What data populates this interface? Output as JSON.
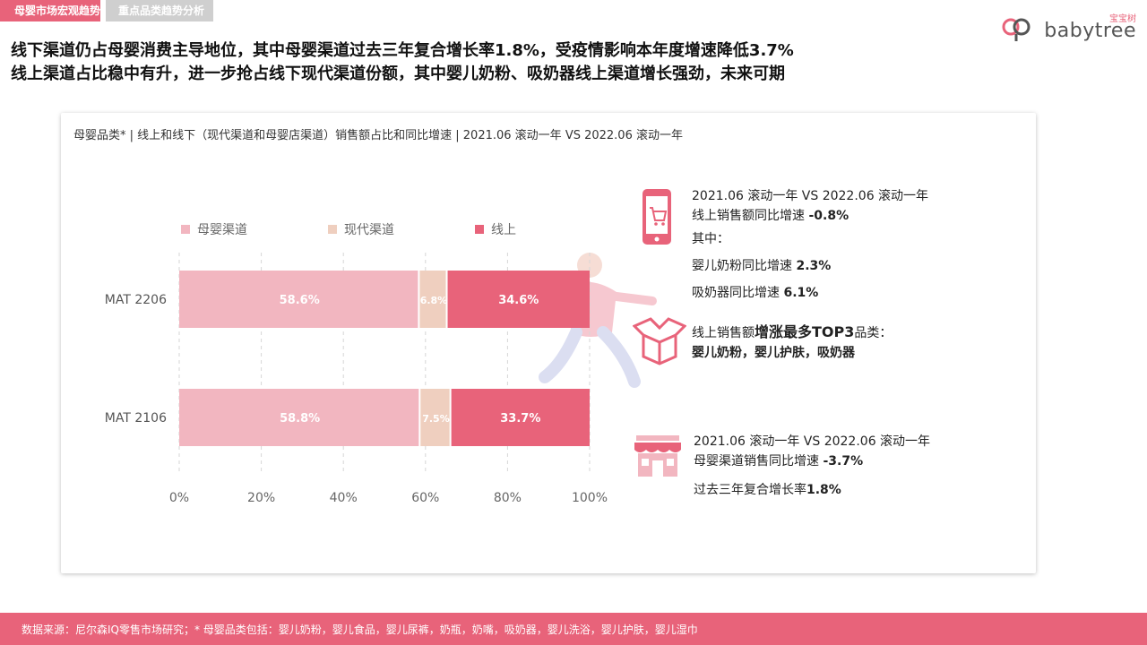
{
  "tabs": [
    {
      "label": "母婴市场宏观趋势"
    },
    {
      "label": "重点品类趋势分析"
    }
  ],
  "logo": {
    "zh": "宝宝树",
    "en": "babytree"
  },
  "headline": {
    "line1": "线下渠道仍占母婴消费主导地位，其中母婴渠道过去三年复合增长率1.8%，受疫情影响本年度增速降低3.7%",
    "line2": "线上渠道占比稳中有升，进一步抢占线下现代渠道份额，其中婴儿奶粉、吸奶器线上渠道增长强劲，未来可期"
  },
  "card": {
    "title": "母婴品类* | 线上和线下（现代渠道和母婴店渠道）销售额占比和同比增速 | 2021.06 滚动一年 VS 2022.06 滚动一年"
  },
  "chart_data": {
    "type": "bar",
    "orientation": "horizontal",
    "stacked": true,
    "categories": [
      "MAT 2206",
      "MAT 2106"
    ],
    "series": [
      {
        "name": "母婴渠道",
        "values": [
          58.6,
          58.8
        ],
        "labels": [
          "58.6%",
          "58.8%"
        ],
        "color": "#f2b6c0"
      },
      {
        "name": "现代渠道",
        "values": [
          6.8,
          7.5
        ],
        "labels": [
          "6.8%",
          "7.5%"
        ],
        "color": "#efcfbf"
      },
      {
        "name": "线上",
        "values": [
          34.6,
          33.7
        ],
        "labels": [
          "34.6%",
          "33.7%"
        ],
        "color": "#e8637a"
      }
    ],
    "xlim": [
      0,
      100
    ],
    "xticks": [
      "0%",
      "20%",
      "40%",
      "60%",
      "80%",
      "100%"
    ],
    "grid": "vertical dashed",
    "legend": "top"
  },
  "info": {
    "online": {
      "period": "2021.06 滚动一年 VS 2022.06 滚动一年",
      "growth_label": "线上销售额同比增速 ",
      "growth_value": "-0.8%",
      "among": "其中：",
      "formula_label": "婴儿奶粉同比增速 ",
      "formula_value": "2.3%",
      "pump_label": "吸奶器同比增速 ",
      "pump_value": "6.1%"
    },
    "top3": {
      "prefix": "线上销售额",
      "highlight": "增涨最多TOP3",
      "suffix": "品类：",
      "items": "婴儿奶粉，婴儿护肤，吸奶器"
    },
    "offline": {
      "period": "2021.06 滚动一年 VS 2022.06 滚动一年",
      "growth_label": "母婴渠道销售同比增速 ",
      "growth_value": "-3.7%",
      "cagr_label": "过去三年复合增长率",
      "cagr_value": "1.8%"
    }
  },
  "icons": {
    "phone": "phone-cart-icon",
    "box": "open-box-icon",
    "store": "storefront-icon"
  },
  "footer": {
    "text": "数据来源：尼尔森IQ零售市场研究；* 母婴品类包括：婴儿奶粉，婴儿食品，婴儿尿裤，奶瓶，奶嘴，吸奶器，婴儿洗浴，婴儿护肤，婴儿湿巾"
  }
}
